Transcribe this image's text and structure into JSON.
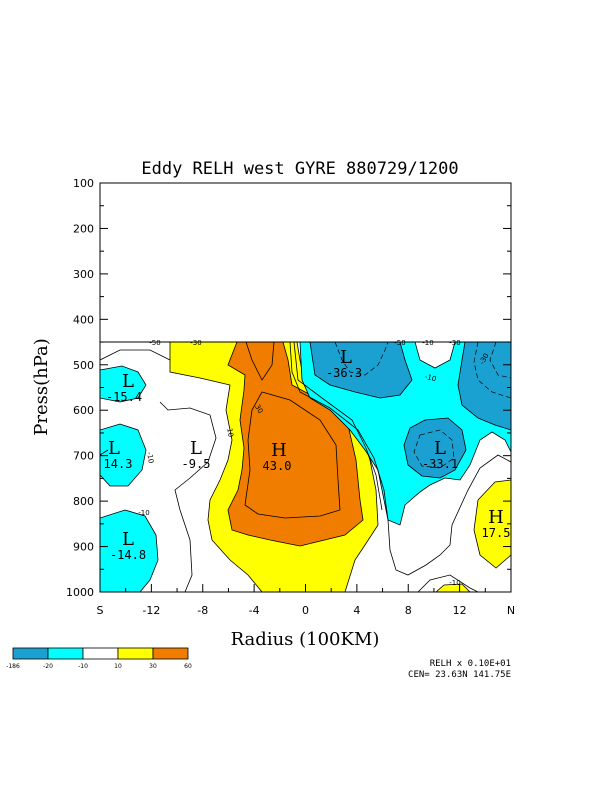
{
  "chart_data": {
    "type": "contour",
    "title": "Eddy RELH west GYRE 880729/1200",
    "xlabel": "Radius (100KM)",
    "ylabel": "Press(hPa)",
    "x_ticks": [
      "S",
      "-12",
      "-8",
      "-4",
      "0",
      "4",
      "8",
      "12",
      "N"
    ],
    "y_ticks": [
      "100",
      "200",
      "300",
      "400",
      "500",
      "600",
      "700",
      "800",
      "900",
      "1000"
    ],
    "colorbar": {
      "colors": [
        "#1ba0d2",
        "#00ffff",
        "#ffffff",
        "#ffff00",
        "#f07d00"
      ],
      "labels": [
        "-186",
        "-20",
        "-10",
        "10",
        "30",
        "60"
      ]
    },
    "contour_labels": [
      {
        "text": "-50"
      },
      {
        "text": "-30"
      },
      {
        "text": "-50"
      },
      {
        "text": "-10"
      },
      {
        "text": "-30"
      },
      {
        "text": "-30"
      },
      {
        "text": "-10"
      },
      {
        "text": "30"
      },
      {
        "text": "10"
      },
      {
        "text": "-10"
      },
      {
        "text": "-10"
      },
      {
        "text": "-10"
      }
    ],
    "extrema": [
      {
        "type": "L",
        "value": "-15.4"
      },
      {
        "type": "L",
        "value": "14.3"
      },
      {
        "type": "L",
        "value": "-9.5"
      },
      {
        "type": "H",
        "value": "43.0"
      },
      {
        "type": "L",
        "value": "-36.3"
      },
      {
        "type": "L",
        "value": "-33.1"
      },
      {
        "type": "H",
        "value": "17.5"
      },
      {
        "type": "L",
        "value": "-14.8"
      }
    ],
    "footer": {
      "line1": "RELH x  0.10E+01",
      "line2": "CEN= 23.63N  141.75E"
    }
  }
}
